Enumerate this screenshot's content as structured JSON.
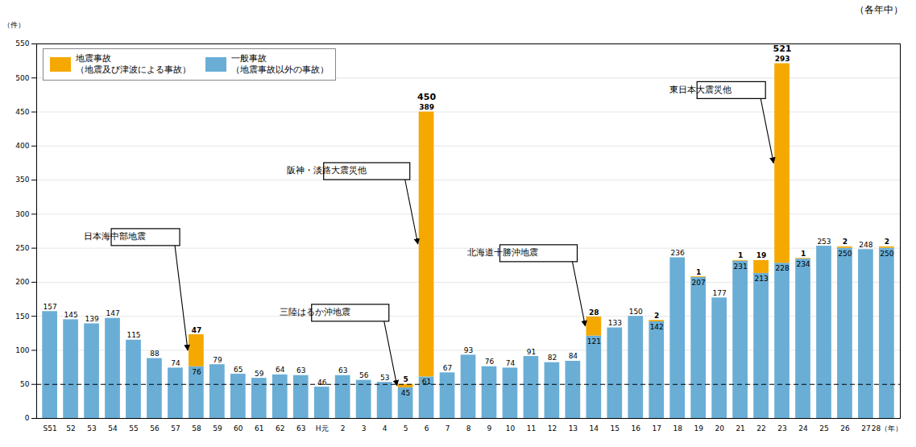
{
  "chart_data": {
    "type": "bar",
    "subtitle": "（各年中）",
    "ylabel": "（件）",
    "categories": [
      "S51",
      "52",
      "53",
      "54",
      "55",
      "56",
      "57",
      "58",
      "59",
      "60",
      "61",
      "62",
      "63",
      "H元",
      "2",
      "3",
      "4",
      "5",
      "6",
      "7",
      "8",
      "9",
      "10",
      "11",
      "12",
      "13",
      "14",
      "15",
      "16",
      "17",
      "18",
      "19",
      "20",
      "21",
      "22",
      "23",
      "24",
      "25",
      "26",
      "27",
      "28（年）"
    ],
    "series": [
      {
        "name": "一般事故\n（地震事故以外の事故）",
        "color": "#6aaed6",
        "values": [
          157,
          145,
          139,
          147,
          115,
          88,
          74,
          76,
          79,
          65,
          59,
          64,
          63,
          46,
          63,
          56,
          53,
          45,
          61,
          67,
          93,
          76,
          74,
          91,
          82,
          84,
          121,
          133,
          150,
          142,
          236,
          207,
          177,
          231,
          213,
          228,
          234,
          253,
          250,
          248,
          250
        ]
      },
      {
        "name": "地震事故\n（地震及び津波による事故）",
        "color": "#f5a800",
        "values": [
          0,
          0,
          0,
          0,
          0,
          0,
          0,
          47,
          0,
          0,
          0,
          0,
          0,
          0,
          0,
          0,
          0,
          5,
          389,
          0,
          0,
          0,
          0,
          0,
          0,
          0,
          28,
          0,
          0,
          2,
          0,
          1,
          0,
          1,
          19,
          293,
          1,
          0,
          2,
          0,
          2
        ]
      }
    ],
    "totals": [
      null,
      null,
      null,
      null,
      null,
      null,
      null,
      null,
      null,
      null,
      null,
      null,
      null,
      null,
      null,
      null,
      null,
      null,
      450,
      null,
      null,
      null,
      null,
      null,
      null,
      null,
      null,
      null,
      null,
      null,
      null,
      null,
      null,
      null,
      null,
      521,
      null,
      null,
      null,
      null,
      null
    ],
    "stacked": true,
    "data_labels": true,
    "ylim": [
      0,
      550
    ],
    "yticks": [
      0,
      50,
      100,
      150,
      200,
      250,
      300,
      350,
      400,
      450,
      500,
      550
    ],
    "grid": true,
    "legend": "upper left",
    "reference_lines": [
      {
        "y": 50,
        "line_style": "dashed"
      }
    ],
    "annotations": [
      {
        "text": "阪神・淡路大震災他",
        "category": "6"
      },
      {
        "text": "東日本大震災他",
        "category": "23"
      },
      {
        "text": "日本海中部地震",
        "category": "58"
      },
      {
        "text": "三陸はるか沖地震",
        "category": "5"
      },
      {
        "text": "北海道十勝沖地震",
        "category": "14"
      }
    ]
  }
}
